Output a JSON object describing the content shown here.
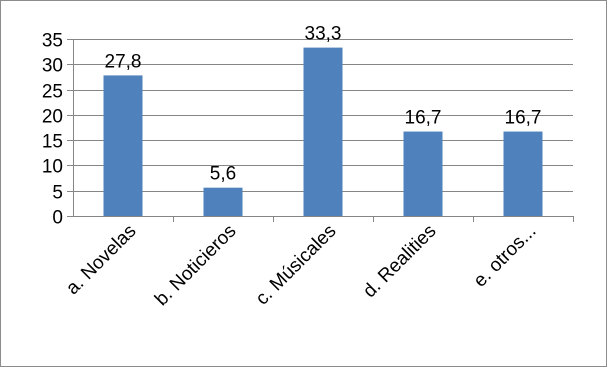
{
  "chart_data": {
    "type": "bar",
    "categories": [
      "a. Novelas",
      "b. Noticieros",
      "c. Músicales",
      "d. Realities",
      "e. otros..."
    ],
    "values": [
      27.8,
      5.6,
      33.3,
      16.7,
      16.7
    ],
    "data_labels": [
      "27,8",
      "5,6",
      "33,3",
      "16,7",
      "16,7"
    ],
    "ylim": [
      0,
      35
    ],
    "yticks": [
      0,
      5,
      10,
      15,
      20,
      25,
      30,
      35
    ],
    "grid": true,
    "legend": "none",
    "title": "",
    "xlabel": "",
    "ylabel": "",
    "colors": {
      "bar": "#4f81bd",
      "grid": "#868686",
      "axis": "#868686"
    }
  }
}
